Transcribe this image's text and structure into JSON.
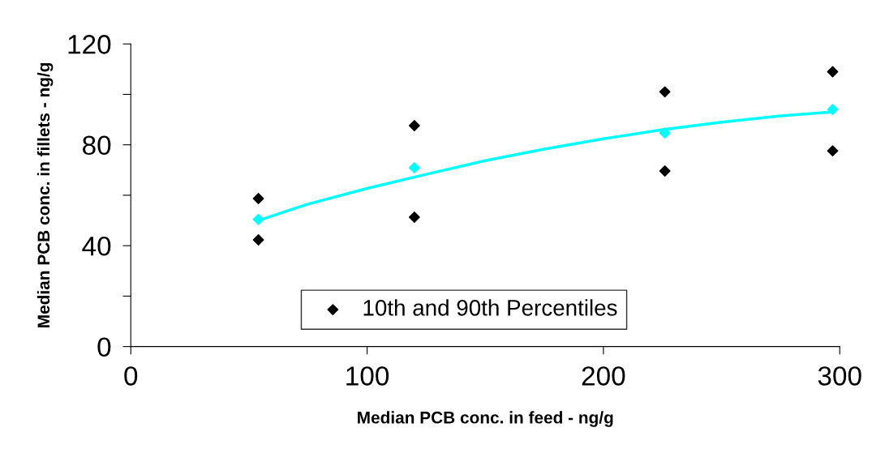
{
  "chart_data": {
    "type": "scatter",
    "xlabel": "Median PCB conc. in feed - ng/g",
    "ylabel": "Median PCB conc. in fillets - ng/g",
    "xlim": [
      0,
      300
    ],
    "xticks": [
      0,
      100,
      200,
      300
    ],
    "ylim": [
      0,
      120
    ],
    "yticks": [
      0,
      {
        "value": 20,
        "label": null
      },
      40,
      {
        "value": 60,
        "label": null
      },
      80,
      {
        "value": 100,
        "label": null
      },
      120
    ],
    "marker": "diamond",
    "grid": false,
    "legend": "bottom",
    "series": [
      {
        "name": "10th and 90th Percentiles",
        "color": "#000000",
        "x": [
          54,
          54,
          120,
          120,
          226,
          226,
          297,
          297
        ],
        "values": [
          58.7,
          42.3,
          87.6,
          51.3,
          101,
          69.6,
          109,
          77.6
        ]
      },
      {
        "color": "#00ffff",
        "x": [
          54,
          120,
          226,
          297
        ],
        "values": [
          50.4,
          70.9,
          84.7,
          94
        ]
      },
      {
        "type": "line",
        "color": "#00ffff",
        "marker": "none",
        "x": [
          54,
          75,
          100,
          125,
          150,
          175,
          200,
          225,
          250,
          275,
          297
        ],
        "values": [
          50,
          56.5,
          62.7,
          68.3,
          73.7,
          78.3,
          82.4,
          86,
          89,
          91.5,
          93
        ]
      }
    ]
  }
}
